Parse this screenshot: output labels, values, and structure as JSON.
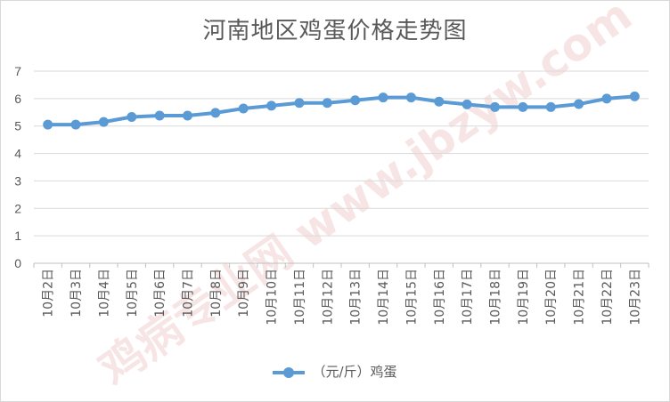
{
  "chart_data": {
    "type": "line",
    "title": "河南地区鸡蛋价格走势图",
    "categories": [
      "10月2日",
      "10月3日",
      "10月4日",
      "10月5日",
      "10月6日",
      "10月7日",
      "10月8日",
      "10月9日",
      "10月10日",
      "10月11日",
      "10月12日",
      "10月13日",
      "10月14日",
      "10月15日",
      "10月16日",
      "10月17日",
      "10月18日",
      "10月19日",
      "10月20日",
      "10月21日",
      "10月22日",
      "10月23日"
    ],
    "series": [
      {
        "name": "（元/斤）鸡蛋",
        "color": "#5b9bd5",
        "values": [
          5.05,
          5.05,
          5.15,
          5.33,
          5.38,
          5.38,
          5.48,
          5.64,
          5.74,
          5.84,
          5.84,
          5.94,
          6.04,
          6.04,
          5.89,
          5.79,
          5.69,
          5.69,
          5.69,
          5.8,
          6.0,
          6.08
        ]
      }
    ],
    "ylim": [
      0,
      7
    ],
    "yticks": [
      0,
      1,
      2,
      3,
      4,
      5,
      6,
      7
    ],
    "grid": true,
    "legend": "bottom"
  },
  "watermark": "鸡病专业网 www.jbzyw.com"
}
